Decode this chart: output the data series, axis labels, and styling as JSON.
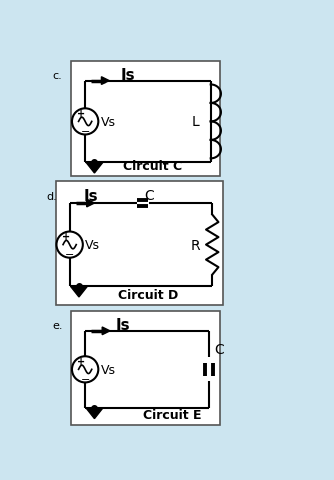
{
  "bg_color": "#cce5f0",
  "panel_color": "#ffffff",
  "panel_border": "#000000",
  "circuits": [
    {
      "label": "c.",
      "title": "Is",
      "circuit_name": "Circuit C",
      "component": "L",
      "component_type": "inductor_right"
    },
    {
      "label": "d.",
      "title": "Is",
      "title2": "C",
      "circuit_name": "Circuit D",
      "component": "C",
      "component_type": "capacitor_top",
      "component2": "R",
      "component2_type": "resistor_right"
    },
    {
      "label": "e.",
      "title": "Is",
      "circuit_name": "Circuit E",
      "component": "C",
      "component_type": "capacitor_right"
    }
  ]
}
